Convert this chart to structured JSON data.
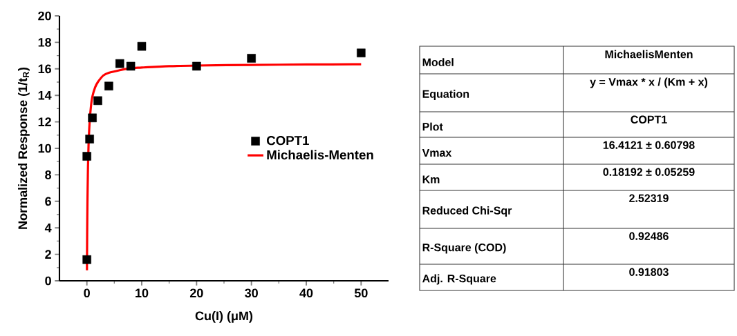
{
  "chart_data": [
    {
      "type": "scatter",
      "xlabel": "Cu(I) (μM)",
      "ylabel": "Normalized Response (1/t$_{R}$)",
      "xlim": [
        -5,
        55
      ],
      "ylim": [
        0,
        20
      ],
      "xticks": [
        0,
        10,
        20,
        30,
        40,
        50
      ],
      "yticks": [
        0,
        2,
        4,
        6,
        8,
        10,
        12,
        14,
        16,
        18,
        20
      ],
      "grid": false,
      "legend": "right",
      "series": [
        {
          "name": "COPT1",
          "marker": "square",
          "color": "#000000",
          "x": [
            0,
            0,
            0.5,
            1,
            2,
            4,
            6,
            8,
            10,
            20,
            30,
            50
          ],
          "values": [
            1.6,
            9.4,
            10.7,
            12.3,
            13.6,
            14.7,
            16.4,
            16.2,
            17.7,
            16.2,
            16.8,
            17.2
          ]
        },
        {
          "name": "Michaelis-Menten",
          "type": "line",
          "marker": "none",
          "line_style": "solid",
          "color": "#ff0000",
          "x": [
            0.01,
            0.05,
            0.1,
            0.2,
            0.3,
            0.5,
            0.75,
            1,
            1.5,
            2,
            3,
            4,
            6,
            8,
            10,
            15,
            20,
            30,
            40,
            50
          ],
          "values": [
            0.8,
            3.5,
            5.8,
            8.6,
            10.2,
            12.0,
            13.2,
            13.9,
            14.6,
            15.0,
            15.5,
            15.7,
            15.9,
            16.05,
            16.1,
            16.2,
            16.25,
            16.3,
            16.33,
            16.35
          ]
        }
      ]
    },
    {
      "type": "other",
      "annotations": [
        "Model",
        "MichaelisMenten",
        "Equation",
        "y = Vmax * x / (Km + x)",
        "Plot",
        "COPT1",
        "Vmax",
        "16.4121 ± 0.60798",
        "Km",
        "0.18192 ± 0.05259",
        "Reduced Chi-Sqr",
        "2.52319",
        "R-Square (COD)",
        "0.92486",
        "Adj. R-Square",
        "0.91803"
      ]
    }
  ]
}
